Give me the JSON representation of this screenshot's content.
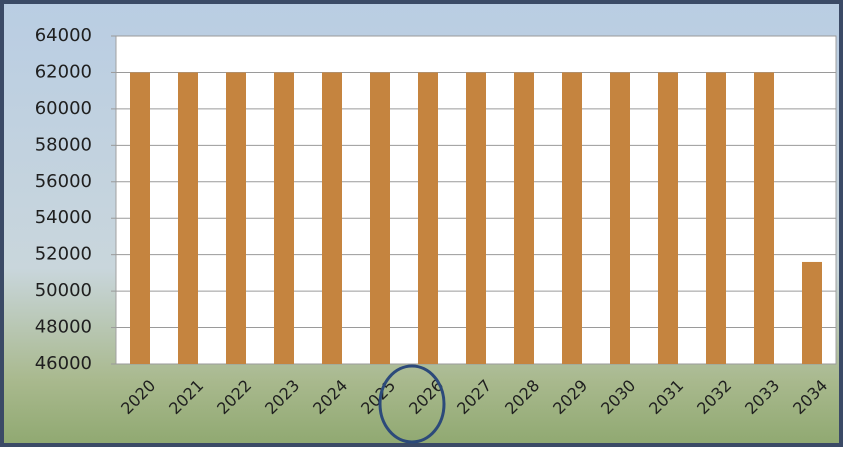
{
  "chart_data": {
    "type": "bar",
    "categories": [
      "2020",
      "2021",
      "2022",
      "2023",
      "2024",
      "2025",
      "2026",
      "2027",
      "2028",
      "2029",
      "2030",
      "2031",
      "2032",
      "2033",
      "2034"
    ],
    "values": [
      62000,
      62000,
      62000,
      62000,
      62000,
      62000,
      62000,
      62000,
      62000,
      62000,
      62000,
      62000,
      62000,
      62000,
      51600
    ],
    "color": "#c5843f",
    "ylim": [
      46000,
      64000
    ],
    "yticks": [
      46000,
      48000,
      50000,
      52000,
      54000,
      56000,
      58000,
      60000,
      62000,
      64000
    ],
    "grid": true
  }
}
